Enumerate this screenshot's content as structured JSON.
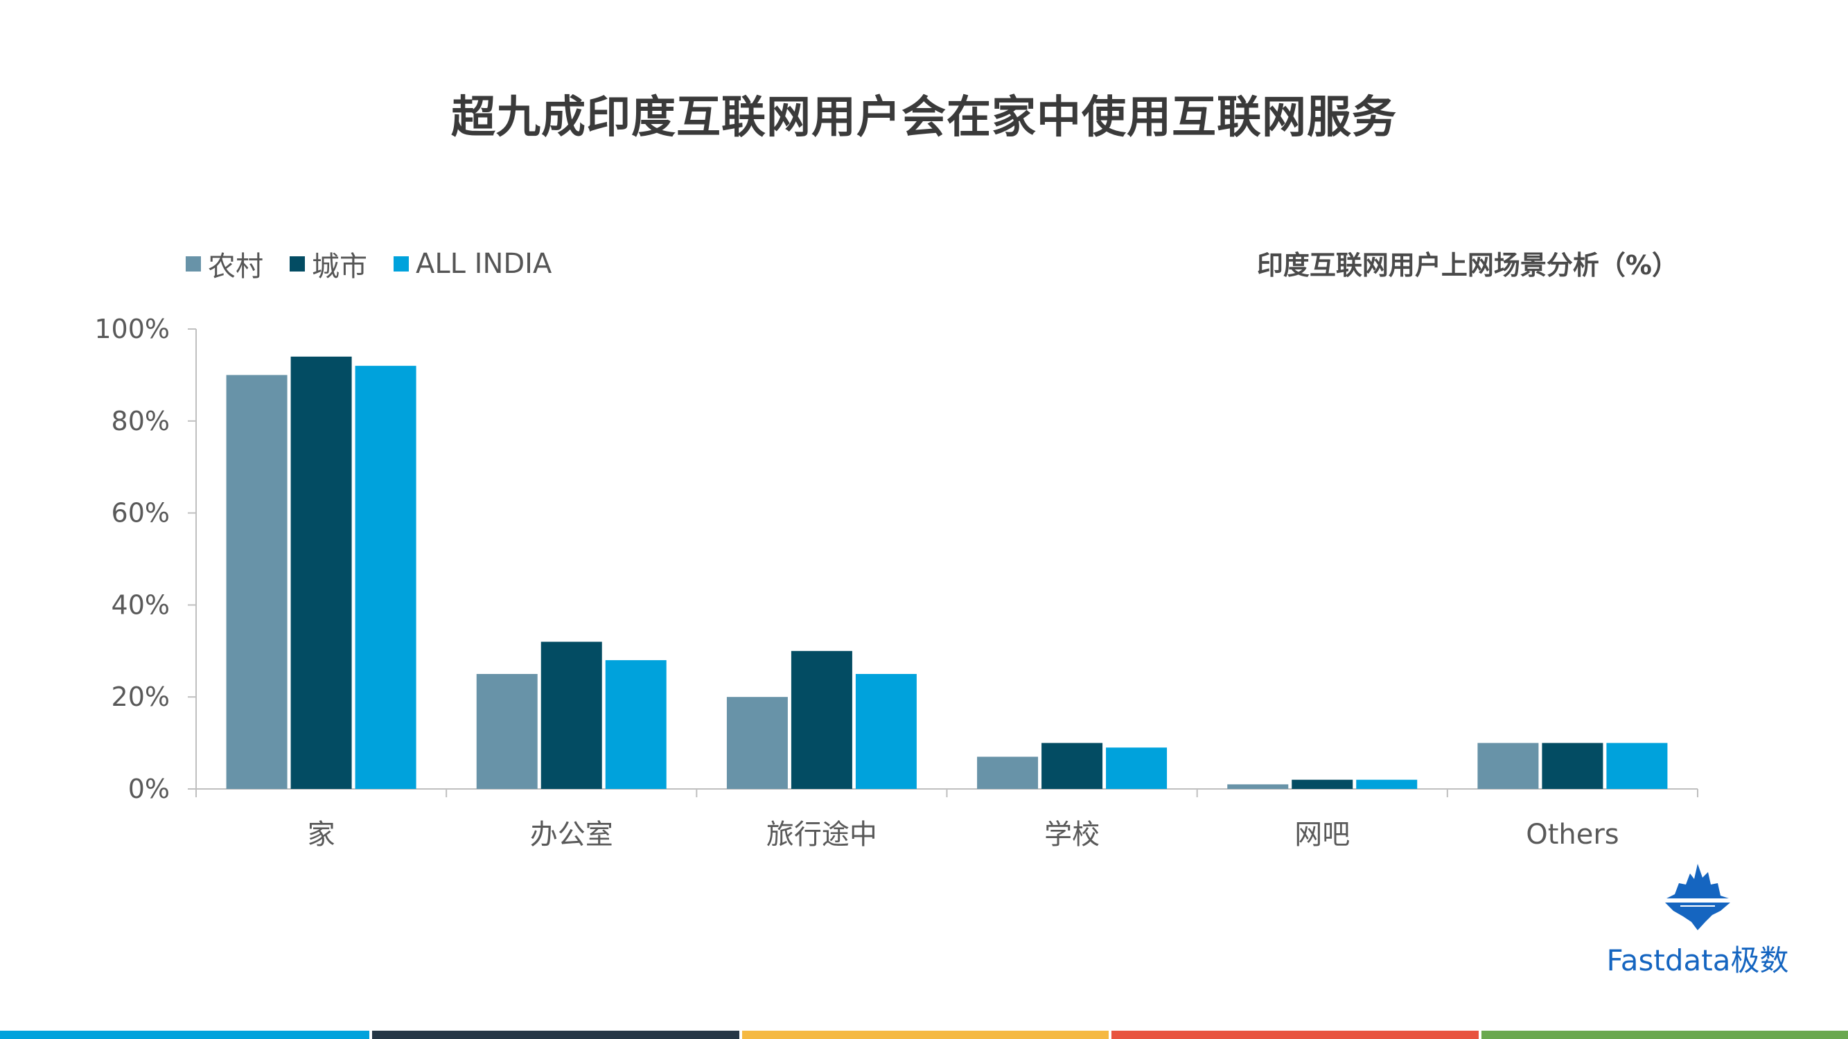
{
  "title": "超九成印度互联网用户会在家中使用互联网服务",
  "subtitle": "印度互联网用户上网场景分析（%）",
  "logo": {
    "text": "Fastdata极数",
    "icon": "iceberg-icon",
    "color": "#1565c0"
  },
  "footer_colors": [
    "#00a2dc",
    "#253645",
    "#f5b942",
    "#e8533f",
    "#6aa84f"
  ],
  "chart_data": {
    "type": "bar",
    "categories": [
      "家",
      "办公室",
      "旅行途中",
      "学校",
      "网吧",
      "Others"
    ],
    "series": [
      {
        "name": "农村",
        "color": "#6893a8",
        "values": [
          90,
          25,
          20,
          7,
          1,
          10
        ]
      },
      {
        "name": "城市",
        "color": "#034c63",
        "values": [
          94,
          32,
          30,
          10,
          2,
          10
        ]
      },
      {
        "name": "ALL INDIA",
        "color": "#00a2dc",
        "values": [
          92,
          28,
          25,
          9,
          2,
          10
        ]
      }
    ],
    "ylim": [
      0,
      100
    ],
    "yticks": [
      "0%",
      "20%",
      "40%",
      "60%",
      "80%",
      "100%"
    ],
    "grid": false,
    "legend_position": "top-left"
  }
}
